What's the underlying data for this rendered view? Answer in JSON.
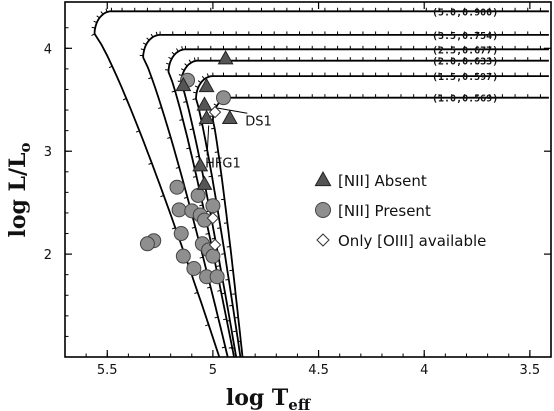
{
  "chart_data": {
    "type": "scatter",
    "xlabel_main": "log T",
    "xlabel_sub": "eff",
    "ylabel": "log L/L",
    "ylabel_sub": "o",
    "xlim": [
      5.7,
      3.4
    ],
    "ylim": [
      1.0,
      4.45
    ],
    "x_ticks": [
      {
        "value": 5.5,
        "label": "5.5"
      },
      {
        "value": 5.0,
        "label": "5"
      },
      {
        "value": 4.5,
        "label": "4.5"
      },
      {
        "value": 4.0,
        "label": "4"
      },
      {
        "value": 3.5,
        "label": "3.5"
      }
    ],
    "y_ticks": [
      {
        "value": 4,
        "label": "4"
      },
      {
        "value": 3,
        "label": "3"
      },
      {
        "value": 2,
        "label": "2"
      }
    ],
    "tracks": [
      {
        "label": "(5.0,0.900)",
        "plateau": 4.36,
        "peak_x": 5.56,
        "base_x": 4.97
      },
      {
        "label": "(3.5,0.754)",
        "plateau": 4.13,
        "peak_x": 5.33,
        "base_x": 4.93
      },
      {
        "label": "(2.5,0.677)",
        "plateau": 3.99,
        "peak_x": 5.21,
        "base_x": 4.9
      },
      {
        "label": "(2.0,0.633)",
        "plateau": 3.88,
        "peak_x": 5.15,
        "base_x": 4.89
      },
      {
        "label": "(1.5,0.597)",
        "plateau": 3.73,
        "peak_x": 5.08,
        "base_x": 4.87
      },
      {
        "label": "(1.0,0.569)",
        "plateau": 3.52,
        "peak_x": 5.0,
        "base_x": 4.86
      }
    ],
    "series": [
      {
        "name": "[NII] Absent",
        "marker": "triangle",
        "color": "#555555",
        "points": [
          {
            "x": 4.94,
            "y": 3.9
          },
          {
            "x": 5.14,
            "y": 3.64
          },
          {
            "x": 5.03,
            "y": 3.63
          },
          {
            "x": 5.04,
            "y": 3.45
          },
          {
            "x": 5.03,
            "y": 3.32
          },
          {
            "x": 4.92,
            "y": 3.32
          },
          {
            "x": 5.06,
            "y": 2.86
          },
          {
            "x": 5.04,
            "y": 2.68
          }
        ]
      },
      {
        "name": "[NII] Present",
        "marker": "circle",
        "color": "#8f8f8f",
        "points": [
          {
            "x": 5.12,
            "y": 3.69
          },
          {
            "x": 4.95,
            "y": 3.52
          },
          {
            "x": 5.17,
            "y": 2.65
          },
          {
            "x": 5.07,
            "y": 2.57
          },
          {
            "x": 5.0,
            "y": 2.47
          },
          {
            "x": 5.16,
            "y": 2.43
          },
          {
            "x": 5.1,
            "y": 2.42
          },
          {
            "x": 5.06,
            "y": 2.38
          },
          {
            "x": 5.04,
            "y": 2.33
          },
          {
            "x": 5.15,
            "y": 2.2
          },
          {
            "x": 5.28,
            "y": 2.13
          },
          {
            "x": 5.31,
            "y": 2.1
          },
          {
            "x": 5.05,
            "y": 2.1
          },
          {
            "x": 5.02,
            "y": 2.04
          },
          {
            "x": 5.14,
            "y": 1.98
          },
          {
            "x": 5.0,
            "y": 1.98
          },
          {
            "x": 5.09,
            "y": 1.86
          },
          {
            "x": 5.03,
            "y": 1.78
          },
          {
            "x": 4.98,
            "y": 1.78
          }
        ]
      },
      {
        "name": "Only [OIII] available",
        "marker": "diamond",
        "color": "#ffffff",
        "points": [
          {
            "x": 4.99,
            "y": 3.38
          },
          {
            "x": 5.0,
            "y": 2.35
          },
          {
            "x": 4.99,
            "y": 2.09
          }
        ]
      }
    ],
    "annotations": [
      {
        "text": "DS1",
        "point": {
          "x": 4.98,
          "y": 3.42
        },
        "text_at": {
          "x": 4.79,
          "y": 3.31
        }
      },
      {
        "text": "HFG1",
        "point": {
          "x": 5.02,
          "y": 3.25
        },
        "text_at": {
          "x": 4.98,
          "y": 2.9
        }
      }
    ],
    "legend_position": "center-right"
  }
}
